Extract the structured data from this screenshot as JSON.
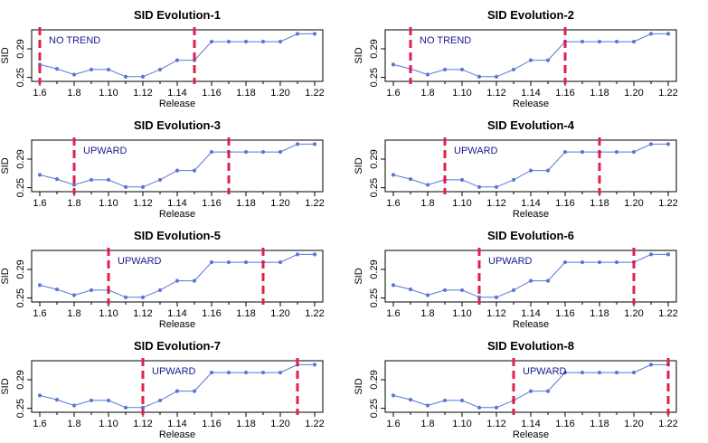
{
  "chart_data": {
    "type": "line",
    "x": [
      "1.6",
      "1.7",
      "1.8",
      "1.9",
      "1.10",
      "1.11",
      "1.12",
      "1.13",
      "1.14",
      "1.15",
      "1.16",
      "1.17",
      "1.18",
      "1.19",
      "1.20",
      "1.21",
      "1.22"
    ],
    "y": [
      0.268,
      0.262,
      0.254,
      0.261,
      0.261,
      0.251,
      0.251,
      0.261,
      0.274,
      0.274,
      0.3,
      0.3,
      0.3,
      0.3,
      0.3,
      0.311,
      0.311
    ],
    "xticks": [
      "1.6",
      "1.8",
      "1.10",
      "1.12",
      "1.14",
      "1.16",
      "1.18",
      "1.20",
      "1.22"
    ],
    "yticks": [
      "0.25",
      "0.29"
    ],
    "ylim": [
      0.247,
      0.314
    ],
    "xlabel": "Release",
    "ylabel": "SID",
    "line_color": "#5b76d6",
    "marker_color": "#5b76d6",
    "change_line_color": "#e0204a",
    "annotation_color": "#1a1a8c",
    "panels": [
      {
        "title": "SID Evolution-1",
        "annotation": "NO TREND",
        "start": "1.6",
        "end": "1.15"
      },
      {
        "title": "SID Evolution-2",
        "annotation": "NO TREND",
        "start": "1.7",
        "end": "1.16"
      },
      {
        "title": "SID Evolution-3",
        "annotation": "UPWARD",
        "start": "1.8",
        "end": "1.17"
      },
      {
        "title": "SID Evolution-4",
        "annotation": "UPWARD",
        "start": "1.9",
        "end": "1.18"
      },
      {
        "title": "SID Evolution-5",
        "annotation": "UPWARD",
        "start": "1.10",
        "end": "1.19"
      },
      {
        "title": "SID Evolution-6",
        "annotation": "UPWARD",
        "start": "1.11",
        "end": "1.20"
      },
      {
        "title": "SID Evolution-7",
        "annotation": "UPWARD",
        "start": "1.12",
        "end": "1.21"
      },
      {
        "title": "SID Evolution-8",
        "annotation": "UPWARD",
        "start": "1.13",
        "end": "1.22"
      }
    ]
  }
}
